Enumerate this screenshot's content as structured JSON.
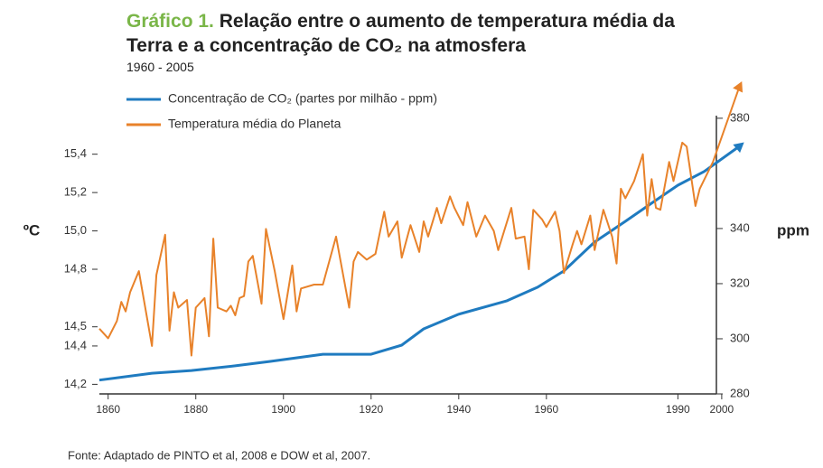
{
  "chart_data": {
    "type": "line",
    "figure_label": "Gráfico 1.",
    "title": "Relação entre o aumento de temperatura média da Terra e a concentração de CO₂ na atmosfera",
    "subtitle": "1960 - 2005",
    "ylabel": "ºC",
    "y2label": "ppm",
    "source": "Fonte: Adaptado de PINTO et al, 2008 e DOW et al, 2007.",
    "xlim": [
      1858,
      2006
    ],
    "xticks": [
      1860,
      1880,
      1900,
      1920,
      1940,
      1960,
      1990,
      2000
    ],
    "ylim": [
      14.15,
      15.78
    ],
    "yticks": [
      {
        "value": 14.2,
        "label": "14,2"
      },
      {
        "value": 14.4,
        "label": "14,4"
      },
      {
        "value": 14.5,
        "label": "14,5"
      },
      {
        "value": 14.8,
        "label": "14,8"
      },
      {
        "value": 15.0,
        "label": "15,0"
      },
      {
        "value": 15.2,
        "label": "15,2"
      },
      {
        "value": 15.4,
        "label": "15,4"
      }
    ],
    "y2lim": [
      280,
      393.4
    ],
    "y2ticks": [
      280,
      300,
      320,
      340,
      380
    ],
    "legend": "upper left",
    "series": [
      {
        "name": "Concentração de CO₂ (partes por milhão - ppm)",
        "color": "#1f7bc0",
        "axis": "y2",
        "x": [
          1858,
          1870,
          1879,
          1889,
          1897,
          1909,
          1920,
          1927,
          1932,
          1940,
          1951,
          1958,
          1964,
          1971,
          1978,
          1984,
          1990,
          1996,
          2004
        ],
        "values": [
          285,
          287.5,
          288.5,
          290.2,
          291.8,
          294.4,
          294.4,
          297.7,
          303.6,
          308.9,
          313.8,
          318.7,
          324.6,
          335.1,
          342.6,
          349.2,
          355.7,
          360.7,
          369.8
        ]
      },
      {
        "name": "Temperatura média do Planeta",
        "color": "#e8822a",
        "axis": "y",
        "x": [
          1858,
          1860,
          1862,
          1863,
          1864,
          1865,
          1867,
          1870,
          1871,
          1873,
          1874,
          1875,
          1876,
          1878,
          1879,
          1880,
          1882,
          1883,
          1884,
          1885,
          1887,
          1888,
          1889,
          1890,
          1891,
          1892,
          1893,
          1895,
          1896,
          1898,
          1900,
          1902,
          1903,
          1904,
          1907,
          1909,
          1912,
          1915,
          1916,
          1917,
          1919,
          1921,
          1923,
          1924,
          1926,
          1927,
          1929,
          1931,
          1932,
          1933,
          1935,
          1936,
          1938,
          1939,
          1941,
          1942,
          1944,
          1946,
          1948,
          1949,
          1952,
          1953,
          1955,
          1956,
          1957,
          1959,
          1960,
          1962,
          1963,
          1964,
          1966,
          1967,
          1968,
          1970,
          1971,
          1973,
          1975,
          1976,
          1977,
          1978,
          1980,
          1982,
          1983,
          1984,
          1985,
          1986,
          1988,
          1989,
          1991,
          1992,
          1994,
          1995,
          1998,
          2004
        ],
        "values": [
          14.49,
          14.44,
          14.53,
          14.63,
          14.58,
          14.68,
          14.79,
          14.4,
          14.77,
          14.98,
          14.48,
          14.68,
          14.6,
          14.64,
          14.35,
          14.6,
          14.65,
          14.45,
          14.96,
          14.6,
          14.58,
          14.61,
          14.56,
          14.65,
          14.66,
          14.84,
          14.87,
          14.62,
          15.01,
          14.79,
          14.54,
          14.82,
          14.58,
          14.7,
          14.72,
          14.72,
          14.97,
          14.6,
          14.84,
          14.89,
          14.85,
          14.88,
          15.1,
          14.97,
          15.05,
          14.86,
          15.03,
          14.89,
          15.05,
          14.97,
          15.12,
          15.04,
          15.18,
          15.12,
          15.03,
          15.15,
          14.97,
          15.08,
          15.0,
          14.9,
          15.12,
          14.96,
          14.97,
          14.8,
          15.11,
          15.06,
          15.02,
          15.1,
          15.0,
          14.78,
          14.93,
          15.0,
          14.93,
          15.08,
          14.9,
          15.11,
          14.97,
          14.83,
          15.22,
          15.17,
          15.26,
          15.4,
          15.08,
          15.27,
          15.12,
          15.11,
          15.36,
          15.26,
          15.46,
          15.44,
          15.13,
          15.22,
          15.36,
          15.75
        ]
      }
    ]
  }
}
